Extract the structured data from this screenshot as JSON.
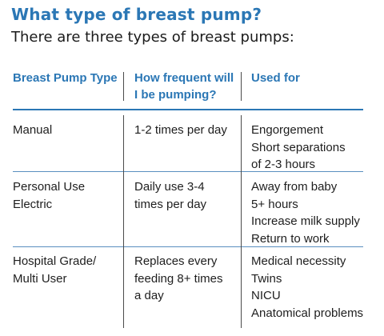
{
  "heading": "What type of breast pump?",
  "subheading": "There are three types of breast pumps:",
  "table": {
    "headers": [
      {
        "lines": [
          "Breast Pump Type"
        ]
      },
      {
        "lines": [
          "How frequent will",
          "I be pumping?"
        ]
      },
      {
        "lines": [
          "Used for"
        ]
      }
    ],
    "rows": [
      {
        "type": [
          "Manual"
        ],
        "frequency": [
          "1-2 times per day"
        ],
        "used_for": [
          "Engorgement",
          "Short separations",
          "of 2-3 hours"
        ]
      },
      {
        "type": [
          "Personal Use",
          "Electric"
        ],
        "frequency": [
          "Daily use 3-4",
          "times per day"
        ],
        "used_for": [
          "Away from baby",
          "5+ hours",
          "Increase milk supply",
          "Return to work"
        ]
      },
      {
        "type": [
          "Hospital Grade/",
          "Multi User"
        ],
        "frequency": [
          "Replaces every",
          "feeding 8+ times",
          "a day"
        ],
        "used_for": [
          "Medical necessity",
          "Twins",
          "NICU",
          "Anatomical problems"
        ]
      }
    ]
  },
  "colors": {
    "accent": "#2b77b5",
    "text": "#1e1e1e"
  }
}
